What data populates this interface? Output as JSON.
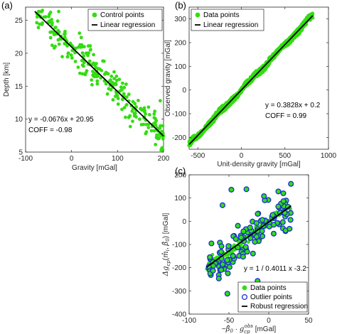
{
  "colors": {
    "data": "#33dd11",
    "outline": "#1a2fd6",
    "fit": "#000000",
    "tick": "#262626"
  },
  "chart_data": [
    {
      "id": "a",
      "panel_label": "(a)",
      "type": "scatter",
      "xlabel": "Gravity [mGal]",
      "ylabel": "Depth [km]",
      "xlim": [
        -100,
        200
      ],
      "ylim": [
        5,
        27
      ],
      "xticks": [
        -100,
        0,
        100,
        200
      ],
      "yticks": [
        5,
        10,
        15,
        20,
        25
      ],
      "legend": {
        "position": "top-right",
        "entries": [
          "Control points",
          "Linear regression"
        ]
      },
      "series": [
        {
          "name": "Control points",
          "kind": "points",
          "generated": {
            "xrange": [
              -80,
              200
            ],
            "count": 260,
            "slope": -0.0676,
            "intercept": 20.95,
            "spread": 1.3,
            "seed": 7
          }
        },
        {
          "name": "Linear regression",
          "kind": "line",
          "slope": -0.0676,
          "intercept": 20.95,
          "xrange": [
            -80,
            200
          ]
        }
      ],
      "annotations": [
        "y = -0.0676x + 20.95",
        "COFF = -0.98"
      ]
    },
    {
      "id": "b",
      "panel_label": "(b)",
      "type": "scatter",
      "xlabel": "Unit-density gravity [mGal]",
      "ylabel": "Observed gravity [mGal]",
      "xlim": [
        -600,
        1000
      ],
      "ylim": [
        -250,
        350
      ],
      "xticks": [
        -500,
        0,
        500,
        1000
      ],
      "yticks": [
        -200,
        -100,
        0,
        100,
        200,
        300
      ],
      "legend": {
        "position": "top-left",
        "entries": [
          "Data points",
          "Linear regression"
        ]
      },
      "series": [
        {
          "name": "Data points",
          "kind": "band",
          "xrange": [
            -600,
            820
          ],
          "slope": 0.3828,
          "intercept": 0.2,
          "halfwidth": 14
        },
        {
          "name": "Linear regression",
          "kind": "line",
          "slope": 0.3828,
          "intercept": 0.2,
          "xrange": [
            -600,
            820
          ]
        }
      ],
      "annotations": [
        "y = 0.3828x + 0.2",
        "COFF = 0.99"
      ]
    },
    {
      "id": "c",
      "panel_label": "(c)",
      "type": "scatter",
      "xlabel": "−β̂₀ · g_cp^obs [mGal]",
      "ylabel": "Δg_cp(m̂ᵢ, β̂₀) [mGal]",
      "xlim": [
        -100,
        50
      ],
      "ylim": [
        -400,
        200
      ],
      "xticks": [
        -100,
        -50,
        0,
        50
      ],
      "yticks": [
        -400,
        -300,
        -200,
        -100,
        0,
        100,
        200
      ],
      "legend": {
        "position": "bottom-right",
        "entries": [
          "Data points",
          "Outlier points",
          "Robust regression"
        ]
      },
      "series": [
        {
          "name": "Data points",
          "kind": "points",
          "generated": {
            "xrange": [
              -78,
              28
            ],
            "count": 180,
            "slope": 2.493,
            "intercept": -3.2,
            "spread": 10,
            "seed": 11
          }
        },
        {
          "name": "Outlier points",
          "kind": "points",
          "generated": {
            "xrange": [
              -78,
              28
            ],
            "count": 130,
            "slope": 2.493,
            "intercept": -3.2,
            "spread": 42,
            "seed": 23
          }
        },
        {
          "name": "Robust regression",
          "kind": "line",
          "slope": 2.493,
          "intercept": -3.2,
          "xrange": [
            -78,
            28
          ]
        }
      ],
      "extra_outliers": [
        [
          -52,
          -312
        ],
        [
          -14,
          -257
        ],
        [
          -28,
          138
        ],
        [
          -47,
          136
        ],
        [
          -6,
          108
        ],
        [
          -58,
          69
        ]
      ],
      "annotations": [
        "y = 1 / 0.4011 x -3.2"
      ]
    }
  ]
}
